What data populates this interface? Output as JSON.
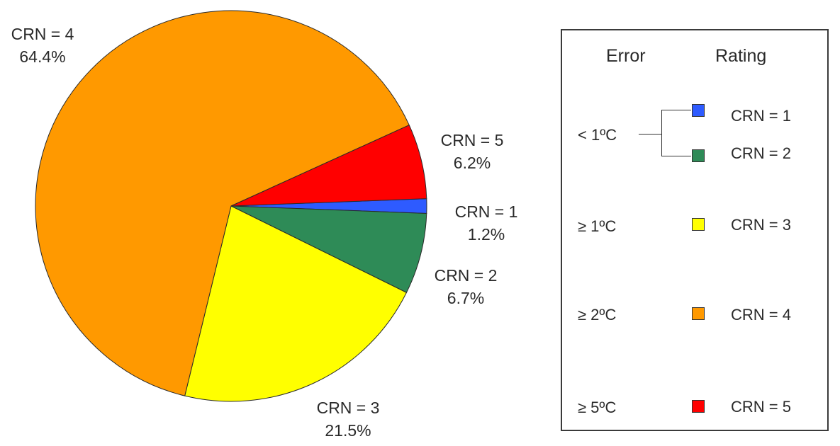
{
  "chart_data": {
    "type": "pie",
    "slices": [
      {
        "label": "CRN = 1",
        "value": 1.2,
        "value_label": "1.2%",
        "color": "#2E5BFF"
      },
      {
        "label": "CRN = 2",
        "value": 6.7,
        "value_label": "6.7%",
        "color": "#2E8B57"
      },
      {
        "label": "CRN = 3",
        "value": 21.5,
        "value_label": "21.5%",
        "color": "#FFFF00"
      },
      {
        "label": "CRN = 4",
        "value": 64.4,
        "value_label": "64.4%",
        "color": "#FF9900"
      },
      {
        "label": "CRN = 5",
        "value": 6.2,
        "value_label": "6.2%",
        "color": "#FF0000"
      }
    ]
  },
  "legend": {
    "error_header": "Error",
    "rating_header": "Rating",
    "rows": [
      {
        "error": "< 1ºC",
        "rating": "CRN = 1",
        "color": "#2E5BFF"
      },
      {
        "error": "",
        "rating": "CRN = 2",
        "color": "#2E8B57"
      },
      {
        "error": "≥ 1ºC",
        "rating": "CRN = 3",
        "color": "#FFFF00"
      },
      {
        "error": "≥ 2ºC",
        "rating": "CRN = 4",
        "color": "#FF9900"
      },
      {
        "error": "≥ 5ºC",
        "rating": "CRN = 5",
        "color": "#FF0000"
      }
    ]
  }
}
